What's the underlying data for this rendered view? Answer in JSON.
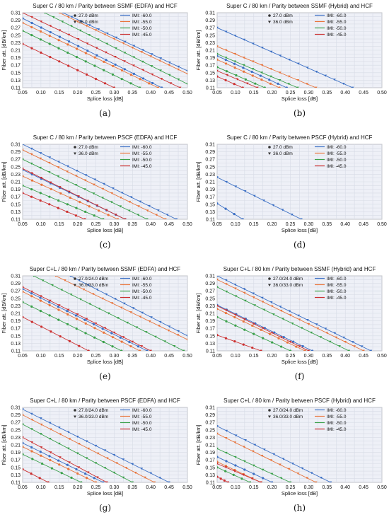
{
  "chart_data": [
    {
      "caption": "(a)",
      "title": "Super C / 80 km / Parity between SSMF (EDFA) and HCF",
      "type": "line",
      "xlabel": "Splice loss [dB]",
      "ylabel": "Fiber att. [dB/km]",
      "xlim": [
        0.05,
        0.5
      ],
      "ylim": [
        0.11,
        0.31
      ],
      "xticks": [
        "0.05",
        "0.10",
        "0.15",
        "0.20",
        "0.25",
        "0.30",
        "0.35",
        "0.40",
        "0.45",
        "0.50"
      ],
      "yticks": [
        "0.11",
        "0.13",
        "0.15",
        "0.17",
        "0.19",
        "0.21",
        "0.23",
        "0.25",
        "0.27",
        "0.29",
        "0.31"
      ],
      "power_legend": [
        "27.0 dBm",
        "36.0 dBm"
      ],
      "imi_legend": [
        "IMI: -60.0",
        "IMI: -55.0",
        "IMI: -50.0",
        "IMI: -45.0"
      ],
      "series": [
        {
          "name": "IMI: -60.0",
          "marker": "circle",
          "x": [
            0.05,
            0.43
          ],
          "y": [
            0.295,
            0.11
          ]
        },
        {
          "name": "IMI: -55.0",
          "marker": "circle",
          "x": [
            0.05,
            0.42
          ],
          "y": [
            0.283,
            0.11
          ]
        },
        {
          "name": "IMI: -50.0",
          "marker": "circle",
          "x": [
            0.05,
            0.37
          ],
          "y": [
            0.262,
            0.11
          ]
        },
        {
          "name": "IMI: -45.0",
          "marker": "circle",
          "x": [
            0.05,
            0.3
          ],
          "y": [
            0.227,
            0.11
          ]
        },
        {
          "name": "IMI: -60.0",
          "marker": "triangle",
          "x": [
            0.16,
            0.5
          ],
          "y": [
            0.31,
            0.155
          ]
        },
        {
          "name": "IMI: -55.0",
          "marker": "triangle",
          "x": [
            0.15,
            0.5
          ],
          "y": [
            0.31,
            0.147
          ]
        },
        {
          "name": "IMI: -50.0",
          "marker": "triangle",
          "x": [
            0.11,
            0.5
          ],
          "y": [
            0.31,
            0.12
          ]
        },
        {
          "name": "IMI: -45.0",
          "marker": "triangle",
          "x": [
            0.05,
            0.48
          ],
          "y": [
            0.31,
            0.11
          ]
        }
      ]
    },
    {
      "caption": "(b)",
      "title": "Super C / 80 km / Parity between SSMF (Hybrid) and HCF",
      "type": "line",
      "xlabel": "Splice loss [dB]",
      "ylabel": "Fiber att. [dB/km]",
      "xlim": [
        0.05,
        0.5
      ],
      "ylim": [
        0.11,
        0.31
      ],
      "xticks": [
        "0.05",
        "0.10",
        "0.15",
        "0.20",
        "0.25",
        "0.30",
        "0.35",
        "0.40",
        "0.45",
        "0.50"
      ],
      "yticks": [
        "0.11",
        "0.13",
        "0.15",
        "0.17",
        "0.19",
        "0.21",
        "0.23",
        "0.25",
        "0.27",
        "0.29",
        "0.31"
      ],
      "power_legend": [
        "27.0 dBm",
        "36.0 dBm"
      ],
      "imi_legend": [
        "IMI: -60.0",
        "IMI: -55.0",
        "IMI: -50.0",
        "IMI: -45.0"
      ],
      "series": [
        {
          "name": "IMI: -60.0",
          "marker": "circle",
          "x": [
            0.05,
            0.24
          ],
          "y": [
            0.195,
            0.11
          ]
        },
        {
          "name": "IMI: -55.0",
          "marker": "circle",
          "x": [
            0.05,
            0.22
          ],
          "y": [
            0.185,
            0.11
          ]
        },
        {
          "name": "IMI: -50.0",
          "marker": "circle",
          "x": [
            0.05,
            0.18
          ],
          "y": [
            0.165,
            0.11
          ]
        },
        {
          "name": "IMI: -45.0",
          "marker": "circle",
          "x": [
            0.05,
            0.12
          ],
          "y": [
            0.14,
            0.11
          ]
        },
        {
          "name": "IMI: -60.0",
          "marker": "triangle",
          "x": [
            0.05,
            0.42
          ],
          "y": [
            0.27,
            0.11
          ]
        },
        {
          "name": "IMI: -55.0",
          "marker": "triangle",
          "x": [
            0.05,
            0.32
          ],
          "y": [
            0.22,
            0.11
          ]
        },
        {
          "name": "IMI: -50.0",
          "marker": "triangle",
          "x": [
            0.05,
            0.27
          ],
          "y": [
            0.2,
            0.11
          ]
        },
        {
          "name": "IMI: -45.0",
          "marker": "triangle",
          "x": [
            0.05,
            0.16
          ],
          "y": [
            0.155,
            0.11
          ]
        }
      ]
    },
    {
      "caption": "(c)",
      "title": "Super C / 80 km / Parity between PSCF (EDFA) and HCF",
      "type": "line",
      "xlabel": "Splice loss [dB]",
      "ylabel": "Fiber att. [dB/km]",
      "xlim": [
        0.05,
        0.5
      ],
      "ylim": [
        0.11,
        0.31
      ],
      "xticks": [
        "0.05",
        "0.10",
        "0.15",
        "0.20",
        "0.25",
        "0.30",
        "0.35",
        "0.40",
        "0.45",
        "0.50"
      ],
      "yticks": [
        "0.11",
        "0.13",
        "0.15",
        "0.17",
        "0.19",
        "0.21",
        "0.23",
        "0.25",
        "0.27",
        "0.29",
        "0.31"
      ],
      "power_legend": [
        "27.0 dBm",
        "36.0 dBm"
      ],
      "imi_legend": [
        "IMI: -60.0",
        "IMI: -55.0",
        "IMI: -50.0",
        "IMI: -45.0"
      ],
      "series": [
        {
          "name": "IMI: -60.0",
          "marker": "circle",
          "x": [
            0.05,
            0.33
          ],
          "y": [
            0.242,
            0.11
          ]
        },
        {
          "name": "IMI: -55.0",
          "marker": "circle",
          "x": [
            0.05,
            0.31
          ],
          "y": [
            0.225,
            0.11
          ]
        },
        {
          "name": "IMI: -50.0",
          "marker": "circle",
          "x": [
            0.05,
            0.27
          ],
          "y": [
            0.2,
            0.11
          ]
        },
        {
          "name": "IMI: -45.0",
          "marker": "circle",
          "x": [
            0.05,
            0.22
          ],
          "y": [
            0.18,
            0.11
          ]
        },
        {
          "name": "IMI: -60.0",
          "marker": "triangle",
          "x": [
            0.05,
            0.47
          ],
          "y": [
            0.31,
            0.11
          ]
        },
        {
          "name": "IMI: -55.0",
          "marker": "triangle",
          "x": [
            0.05,
            0.44
          ],
          "y": [
            0.295,
            0.11
          ]
        },
        {
          "name": "IMI: -50.0",
          "marker": "triangle",
          "x": [
            0.05,
            0.39
          ],
          "y": [
            0.27,
            0.11
          ]
        },
        {
          "name": "IMI: -45.0",
          "marker": "triangle",
          "x": [
            0.05,
            0.33
          ],
          "y": [
            0.245,
            0.11
          ]
        }
      ]
    },
    {
      "caption": "(d)",
      "title": "Super C / 80 km / Parity between PSCF (Hybrid) and HCF",
      "type": "line",
      "xlabel": "Splice loss [dB]",
      "ylabel": "Fiber att. [dB/km]",
      "xlim": [
        0.05,
        0.5
      ],
      "ylim": [
        0.11,
        0.31
      ],
      "xticks": [
        "0.05",
        "0.10",
        "0.15",
        "0.20",
        "0.25",
        "0.30",
        "0.35",
        "0.40",
        "0.45",
        "0.50"
      ],
      "yticks": [
        "0.11",
        "0.13",
        "0.15",
        "0.17",
        "0.19",
        "0.21",
        "0.23",
        "0.25",
        "0.27",
        "0.29",
        "0.31"
      ],
      "power_legend": [
        "27.0 dBm",
        "36.0 dBm"
      ],
      "imi_legend": [
        "IMI: -60.0",
        "IMI: -55.0",
        "IMI: -50.0",
        "IMI: -45.0"
      ],
      "series": [
        {
          "name": "IMI: -60.0",
          "marker": "circle",
          "x": [
            0.05,
            0.12
          ],
          "y": [
            0.152,
            0.11
          ]
        },
        {
          "name": "IMI: -60.0",
          "marker": "triangle",
          "x": [
            0.05,
            0.28
          ],
          "y": [
            0.222,
            0.11
          ]
        }
      ]
    },
    {
      "caption": "(e)",
      "title": "Super C+L / 80 km / Parity between SSMF (EDFA) and HCF",
      "type": "line",
      "xlabel": "Splice loss [dB]",
      "ylabel": "Fiber att. [dB/km]",
      "xlim": [
        0.05,
        0.5
      ],
      "ylim": [
        0.11,
        0.31
      ],
      "xticks": [
        "0.05",
        "0.10",
        "0.15",
        "0.20",
        "0.25",
        "0.30",
        "0.35",
        "0.40",
        "0.45",
        "0.50"
      ],
      "yticks": [
        "0.11",
        "0.13",
        "0.15",
        "0.17",
        "0.19",
        "0.21",
        "0.23",
        "0.25",
        "0.27",
        "0.29",
        "0.31"
      ],
      "power_legend": [
        "27.0/24.0 dBm",
        "36.0/33.0 dBm"
      ],
      "imi_legend": [
        "IMI: -60.0",
        "IMI: -55.0",
        "IMI: -50.0",
        "IMI: -45.0"
      ],
      "series": [
        {
          "name": "IMI: -60.0",
          "marker": "circle",
          "x": [
            0.05,
            0.39
          ],
          "y": [
            0.275,
            0.11
          ]
        },
        {
          "name": "IMI: -55.0",
          "marker": "circle",
          "x": [
            0.05,
            0.37
          ],
          "y": [
            0.268,
            0.11
          ]
        },
        {
          "name": "IMI: -50.0",
          "marker": "circle",
          "x": [
            0.05,
            0.32
          ],
          "y": [
            0.24,
            0.11
          ]
        },
        {
          "name": "IMI: -45.0",
          "marker": "circle",
          "x": [
            0.05,
            0.23
          ],
          "y": [
            0.2,
            0.11
          ]
        },
        {
          "name": "IMI: -60.0",
          "marker": "triangle",
          "x": [
            0.18,
            0.5
          ],
          "y": [
            0.31,
            0.15
          ]
        },
        {
          "name": "IMI: -55.0",
          "marker": "triangle",
          "x": [
            0.14,
            0.5
          ],
          "y": [
            0.31,
            0.14
          ]
        },
        {
          "name": "IMI: -50.0",
          "marker": "triangle",
          "x": [
            0.08,
            0.49
          ],
          "y": [
            0.31,
            0.11
          ]
        },
        {
          "name": "IMI: -45.0",
          "marker": "triangle",
          "x": [
            0.05,
            0.4
          ],
          "y": [
            0.28,
            0.11
          ]
        }
      ]
    },
    {
      "caption": "(f)",
      "title": "Super C+L / 80 km / Parity between SSMF (Hybrid) and HCF",
      "type": "line",
      "xlabel": "Splice loss [dB]",
      "ylabel": "Fiber att. [dB/km]",
      "xlim": [
        0.05,
        0.5
      ],
      "ylim": [
        0.11,
        0.31
      ],
      "xticks": [
        "0.05",
        "0.10",
        "0.15",
        "0.20",
        "0.25",
        "0.30",
        "0.35",
        "0.40",
        "0.45",
        "0.50"
      ],
      "yticks": [
        "0.11",
        "0.13",
        "0.15",
        "0.17",
        "0.19",
        "0.21",
        "0.23",
        "0.25",
        "0.27",
        "0.29",
        "0.31"
      ],
      "power_legend": [
        "27.0/24.0 dBm",
        "36.0/33.0 dBm"
      ],
      "imi_legend": [
        "IMI: -60.0",
        "IMI: -55.0",
        "IMI: -50.0",
        "IMI: -45.0"
      ],
      "series": [
        {
          "name": "IMI: -60.0",
          "marker": "circle",
          "x": [
            0.05,
            0.31
          ],
          "y": [
            0.232,
            0.11
          ]
        },
        {
          "name": "IMI: -55.0",
          "marker": "circle",
          "x": [
            0.05,
            0.29
          ],
          "y": [
            0.222,
            0.11
          ]
        },
        {
          "name": "IMI: -50.0",
          "marker": "circle",
          "x": [
            0.05,
            0.25
          ],
          "y": [
            0.2,
            0.11
          ]
        },
        {
          "name": "IMI: -45.0",
          "marker": "circle",
          "x": [
            0.05,
            0.17
          ],
          "y": [
            0.152,
            0.11
          ]
        },
        {
          "name": "IMI: -60.0",
          "marker": "triangle",
          "x": [
            0.05,
            0.47
          ],
          "y": [
            0.31,
            0.11
          ]
        },
        {
          "name": "IMI: -55.0",
          "marker": "triangle",
          "x": [
            0.05,
            0.45
          ],
          "y": [
            0.3,
            0.11
          ]
        },
        {
          "name": "IMI: -50.0",
          "marker": "triangle",
          "x": [
            0.05,
            0.41
          ],
          "y": [
            0.28,
            0.11
          ]
        },
        {
          "name": "IMI: -45.0",
          "marker": "triangle",
          "x": [
            0.05,
            0.3
          ],
          "y": [
            0.23,
            0.11
          ]
        }
      ]
    },
    {
      "caption": "(g)",
      "title": "Super C+L / 80 km / Parity between PSCF (EDFA) and HCF",
      "type": "line",
      "xlabel": "Splice loss [dB]",
      "ylabel": "Fiber att. [dB/km]",
      "xlim": [
        0.05,
        0.5
      ],
      "ylim": [
        0.11,
        0.31
      ],
      "xticks": [
        "0.05",
        "0.10",
        "0.15",
        "0.20",
        "0.25",
        "0.30",
        "0.35",
        "0.40",
        "0.45",
        "0.50"
      ],
      "yticks": [
        "0.11",
        "0.13",
        "0.15",
        "0.17",
        "0.19",
        "0.21",
        "0.23",
        "0.25",
        "0.27",
        "0.29",
        "0.31"
      ],
      "power_legend": [
        "27.0/24.0 dBm",
        "36.0/33.0 dBm"
      ],
      "imi_legend": [
        "IMI: -60.0",
        "IMI: -55.0",
        "IMI: -50.0",
        "IMI: -45.0"
      ],
      "series": [
        {
          "name": "IMI: -60.0",
          "marker": "circle",
          "x": [
            0.05,
            0.27
          ],
          "y": [
            0.215,
            0.11
          ]
        },
        {
          "name": "IMI: -55.0",
          "marker": "circle",
          "x": [
            0.05,
            0.25
          ],
          "y": [
            0.205,
            0.11
          ]
        },
        {
          "name": "IMI: -50.0",
          "marker": "circle",
          "x": [
            0.05,
            0.21
          ],
          "y": [
            0.185,
            0.11
          ]
        },
        {
          "name": "IMI: -45.0",
          "marker": "circle",
          "x": [
            0.05,
            0.12
          ],
          "y": [
            0.145,
            0.11
          ]
        },
        {
          "name": "IMI: -60.0",
          "marker": "triangle",
          "x": [
            0.05,
            0.45
          ],
          "y": [
            0.305,
            0.11
          ]
        },
        {
          "name": "IMI: -55.0",
          "marker": "triangle",
          "x": [
            0.05,
            0.41
          ],
          "y": [
            0.29,
            0.11
          ]
        },
        {
          "name": "IMI: -50.0",
          "marker": "triangle",
          "x": [
            0.05,
            0.35
          ],
          "y": [
            0.265,
            0.11
          ]
        },
        {
          "name": "IMI: -45.0",
          "marker": "triangle",
          "x": [
            0.05,
            0.28
          ],
          "y": [
            0.23,
            0.11
          ]
        }
      ]
    },
    {
      "caption": "(h)",
      "title": "Super C+L / 80 km / Parity between PSCF (Hybrid) and HCF",
      "type": "line",
      "xlabel": "Splice loss [dB]",
      "ylabel": "Fiber att. [dB/km]",
      "xlim": [
        0.05,
        0.5
      ],
      "ylim": [
        0.11,
        0.31
      ],
      "xticks": [
        "0.05",
        "0.10",
        "0.15",
        "0.20",
        "0.25",
        "0.30",
        "0.35",
        "0.40",
        "0.45",
        "0.50"
      ],
      "yticks": [
        "0.11",
        "0.13",
        "0.15",
        "0.17",
        "0.19",
        "0.21",
        "0.23",
        "0.25",
        "0.27",
        "0.29",
        "0.31"
      ],
      "power_legend": [
        "27.0/24.0 dBm",
        "36.0/33.0 dBm"
      ],
      "imi_legend": [
        "IMI: -60.0",
        "IMI: -55.0",
        "IMI: -50.0",
        "IMI: -45.0"
      ],
      "series": [
        {
          "name": "IMI: -60.0",
          "marker": "circle",
          "x": [
            0.05,
            0.2
          ],
          "y": [
            0.178,
            0.11
          ]
        },
        {
          "name": "IMI: -55.0",
          "marker": "circle",
          "x": [
            0.05,
            0.17
          ],
          "y": [
            0.165,
            0.11
          ]
        },
        {
          "name": "IMI: -50.0",
          "marker": "circle",
          "x": [
            0.05,
            0.14
          ],
          "y": [
            0.15,
            0.11
          ]
        },
        {
          "name": "IMI: -45.0",
          "marker": "circle",
          "x": [
            0.05,
            0.08
          ],
          "y": [
            0.125,
            0.11
          ]
        },
        {
          "name": "IMI: -60.0",
          "marker": "triangle",
          "x": [
            0.05,
            0.36
          ],
          "y": [
            0.26,
            0.11
          ]
        },
        {
          "name": "IMI: -55.0",
          "marker": "triangle",
          "x": [
            0.05,
            0.32
          ],
          "y": [
            0.24,
            0.11
          ]
        },
        {
          "name": "IMI: -50.0",
          "marker": "triangle",
          "x": [
            0.05,
            0.25
          ],
          "y": [
            0.2,
            0.11
          ]
        },
        {
          "name": "IMI: -45.0",
          "marker": "triangle",
          "x": [
            0.05,
            0.17
          ],
          "y": [
            0.16,
            0.11
          ]
        }
      ]
    }
  ],
  "colors": {
    "IMI: -60.0": "#3b6fc4",
    "IMI: -55.0": "#e8743b",
    "IMI: -50.0": "#3aa04a",
    "IMI: -45.0": "#cc2f2f"
  }
}
